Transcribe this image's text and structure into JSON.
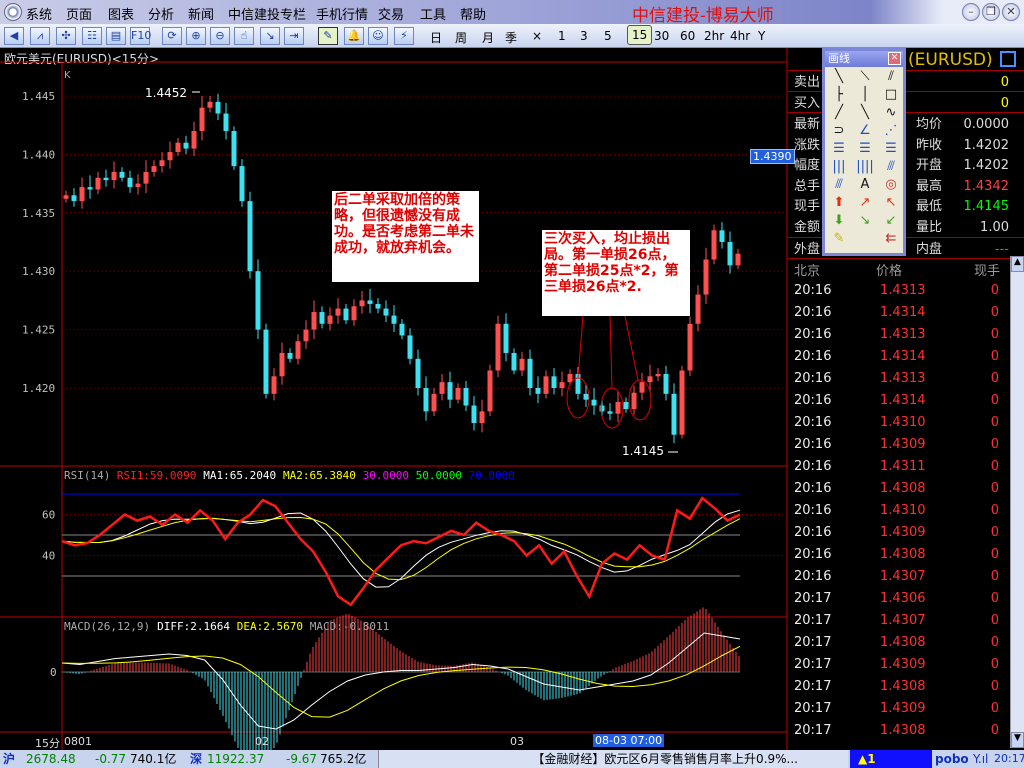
{
  "app": {
    "title": "中信建投-博易大师",
    "menu": [
      "系统",
      "页面",
      "图表",
      "分析",
      "新闻",
      "中信建投专栏",
      "手机行情",
      "交易",
      "工具",
      "帮助"
    ],
    "window_buttons": [
      "minimize",
      "restore",
      "close"
    ]
  },
  "toolbar": {
    "icons": [
      "back-icon",
      "line-chart-icon",
      "candle-chart-icon",
      "table-icon",
      "report-icon",
      "f10-icon",
      "refresh-icon",
      "zoom-in-icon",
      "zoom-out-icon",
      "cursor-icon",
      "export-icon",
      "import-icon",
      "draw-icon",
      "alarm-icon",
      "users-icon",
      "flash-icon"
    ],
    "f10_label": "F10",
    "periods": [
      "日",
      "周",
      "月",
      "季",
      "×",
      "1",
      "3",
      "5",
      "15",
      "30",
      "60",
      "2hr",
      "4hr",
      "Y"
    ],
    "selected_period": "15"
  },
  "chart": {
    "title": "欧元美元(EURUSD)<15分>",
    "k_label": "K",
    "high_label": "1.4452",
    "low_label": "1.4145",
    "current_price": "1.4390",
    "y_ticks": [
      "1.445",
      "1.440",
      "1.435",
      "1.430",
      "1.425",
      "1.420"
    ],
    "note1": "后二单采取加倍的策略，但很遗憾没有成功。是否考虑第二单未成功，就放弃机会。",
    "note2": "三次买入，均止损出局。第一单损26点，第二单损25点*2，第三单损26点*2.",
    "x_labels": [
      "0801",
      "02",
      "03"
    ],
    "period_label": "15分",
    "cursor_time": "08-03 07:00"
  },
  "chart_data": [
    {
      "type": "candlestick",
      "name": "EURUSD 15min",
      "ylim": [
        1.4145,
        1.4452
      ],
      "closes": [
        1.4365,
        1.436,
        1.4372,
        1.437,
        1.438,
        1.4378,
        1.4385,
        1.438,
        1.4372,
        1.4375,
        1.4385,
        1.439,
        1.4395,
        1.4402,
        1.441,
        1.4405,
        1.442,
        1.444,
        1.4445,
        1.4435,
        1.442,
        1.439,
        1.436,
        1.43,
        1.425,
        1.4195,
        1.421,
        1.423,
        1.4225,
        1.424,
        1.425,
        1.4265,
        1.4255,
        1.4262,
        1.4268,
        1.4258,
        1.427,
        1.4275,
        1.4272,
        1.4268,
        1.4262,
        1.4255,
        1.4245,
        1.4225,
        1.42,
        1.418,
        1.4195,
        1.4205,
        1.419,
        1.42,
        1.4185,
        1.417,
        1.418,
        1.4215,
        1.4255,
        1.423,
        1.4215,
        1.4225,
        1.42,
        1.4195,
        1.421,
        1.42,
        1.4205,
        1.4212,
        1.4195,
        1.419,
        1.4185,
        1.418,
        1.4178,
        1.4188,
        1.4182,
        1.4196,
        1.4205,
        1.421,
        1.4212,
        1.4195,
        1.416,
        1.4215,
        1.4255,
        1.428,
        1.431,
        1.4335,
        1.4325,
        1.4305,
        1.4315
      ]
    },
    {
      "type": "line",
      "title": "RSI(14)",
      "y_ticks": [
        60,
        40
      ],
      "levels": [
        30,
        50,
        70
      ],
      "level_colors": [
        "#ff00ff",
        "#00ff00",
        "#0000ff"
      ],
      "legend": {
        "label": "RSI(14)",
        "rsi1": "RSI1:59.0090",
        "ma1": "MA1:65.2040",
        "ma2": "MA2:65.3840",
        "l30": "30.0000",
        "l50": "50.0000",
        "l70": "70.0000"
      },
      "rsi": [
        47,
        45,
        46,
        50,
        55,
        60,
        57,
        59,
        55,
        60,
        56,
        62,
        57,
        48,
        56,
        60,
        67,
        64,
        56,
        48,
        42,
        32,
        20,
        16,
        24,
        33,
        39,
        45,
        47,
        46,
        49,
        52,
        50,
        56,
        52,
        50,
        47,
        40,
        45,
        36,
        42,
        30,
        20,
        36,
        41,
        38,
        45,
        40,
        38,
        62,
        58,
        68,
        63,
        57,
        60
      ]
    },
    {
      "type": "line",
      "title": "MACD(26,12,9)",
      "legend": {
        "label": "MACD(26,12,9)",
        "diff": "DIFF:2.1664",
        "dea": "DEA:2.5670",
        "macd": "MACD:-0.8011"
      },
      "diff": [
        0.6,
        0.5,
        0.7,
        0.9,
        1.0,
        1.1,
        1.2,
        1.1,
        0.8,
        -0.5,
        -2.2,
        -3.6,
        -3.8,
        -3.2,
        -2.2,
        -1.3,
        -0.6,
        -0.2,
        0.0,
        0.1,
        0.1,
        0.2,
        0.3,
        0.5,
        0.4,
        0.2,
        -0.3,
        -0.8,
        -1.0,
        -1.2,
        -1.0,
        -0.8,
        -0.6,
        -0.2,
        0.6,
        1.6,
        2.6,
        2.4,
        2.2
      ]
    }
  ],
  "quote": {
    "header": "(EURUSD)",
    "rows": [
      {
        "l": "卖出",
        "r": "",
        "rv": "0"
      },
      {
        "l": "买入",
        "r": "",
        "rv": "0"
      },
      {
        "l": "最新",
        "r": "均价",
        "rv": "0.0000"
      },
      {
        "l": "涨跌",
        "r": "昨收",
        "rv": "1.4202"
      },
      {
        "l": "幅度",
        "r": "开盘",
        "rv": "1.4202"
      },
      {
        "l": "总手",
        "r": "最高",
        "rv": "1.4342"
      },
      {
        "l": "现手",
        "r": "最低",
        "rv": "1.4145"
      },
      {
        "l": "金额",
        "r": "量比",
        "rv": "1.00"
      },
      {
        "l": "外盘",
        "r": "内盘",
        "rv": "---"
      }
    ],
    "colors": {
      "high": "#ff4040",
      "low": "#00ff00"
    }
  },
  "ticks": {
    "headers": [
      "北京",
      "价格",
      "现手"
    ],
    "rows": [
      [
        "20:16",
        "1.4313",
        "0"
      ],
      [
        "20:16",
        "1.4314",
        "0"
      ],
      [
        "20:16",
        "1.4313",
        "0"
      ],
      [
        "20:16",
        "1.4314",
        "0"
      ],
      [
        "20:16",
        "1.4313",
        "0"
      ],
      [
        "20:16",
        "1.4314",
        "0"
      ],
      [
        "20:16",
        "1.4310",
        "0"
      ],
      [
        "20:16",
        "1.4309",
        "0"
      ],
      [
        "20:16",
        "1.4311",
        "0"
      ],
      [
        "20:16",
        "1.4308",
        "0"
      ],
      [
        "20:16",
        "1.4310",
        "0"
      ],
      [
        "20:16",
        "1.4309",
        "0"
      ],
      [
        "20:16",
        "1.4308",
        "0"
      ],
      [
        "20:16",
        "1.4307",
        "0"
      ],
      [
        "20:17",
        "1.4306",
        "0"
      ],
      [
        "20:17",
        "1.4307",
        "0"
      ],
      [
        "20:17",
        "1.4308",
        "0"
      ],
      [
        "20:17",
        "1.4309",
        "0"
      ],
      [
        "20:17",
        "1.4308",
        "0"
      ],
      [
        "20:17",
        "1.4309",
        "0"
      ],
      [
        "20:17",
        "1.4308",
        "0"
      ]
    ]
  },
  "draw_tools": {
    "title": "画线",
    "tools": [
      "╲",
      "⟍",
      "⫽",
      "├",
      "│",
      "□",
      "╱",
      "╲",
      "∿",
      "⊃",
      "∠",
      "⋰",
      "☰",
      "☰",
      "☰",
      "|||",
      "||||",
      "⫻",
      "⫻",
      "A",
      "◎",
      "⬆",
      "↗",
      "↖",
      "⬇",
      "↘",
      "↙",
      "✎",
      "",
      "⇇"
    ]
  },
  "status": {
    "sh_label": "沪",
    "sh_index": "2678.48",
    "sh_change": "-0.77",
    "sh_amount": "740.1亿",
    "sz_label": "深",
    "sz_index": "11922.37",
    "sz_change": "-9.67",
    "sz_amount": "765.2亿",
    "news": "【金融财经】欧元区6月零售销售月率上升0.9%...",
    "alert": "▲1",
    "brand": "pobo",
    "time": "20:17"
  }
}
